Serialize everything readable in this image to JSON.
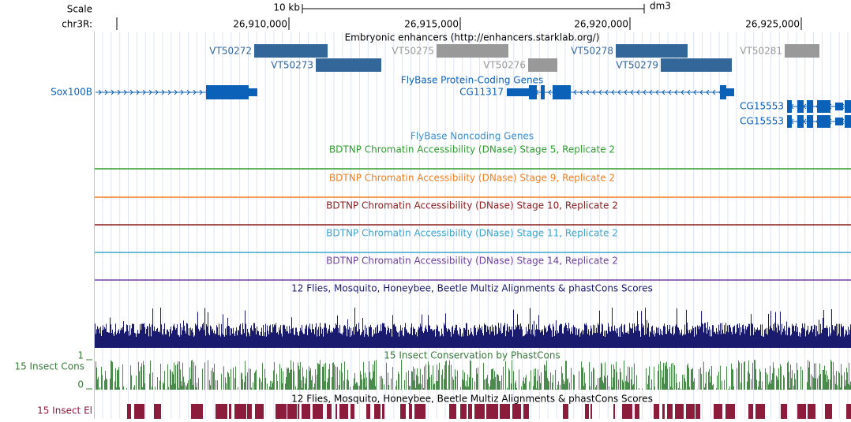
{
  "ruler": {
    "scale_label": "Scale",
    "scale_length": "10 kb",
    "assembly": "dm3",
    "chrom": "chr3R:",
    "positions": [
      "26,910,000",
      "26,915,000",
      "26,920,000",
      "26,925,000"
    ]
  },
  "tracks": {
    "enhancers": {
      "title": "Embryonic enhancers (http://enhancers.starklab.org/)",
      "features": [
        "VT50272",
        "VT50273",
        "VT50275",
        "VT50276",
        "VT50278",
        "VT50279",
        "VT50281"
      ]
    },
    "protein_coding": {
      "title": "FlyBase Protein-Coding Genes",
      "genes": [
        "Sox100B",
        "CG11317",
        "CG15553",
        "CG15553"
      ]
    },
    "noncoding": {
      "title": "FlyBase Noncoding Genes"
    },
    "dnase": [
      "BDTNP Chromatin Accessibility (DNase) Stage 5, Replicate 2",
      "BDTNP Chromatin Accessibility (DNase) Stage 9, Replicate 2",
      "BDTNP Chromatin Accessibility (DNase) Stage 10, Replicate 2",
      "BDTNP Chromatin Accessibility (DNase) Stage 11, Replicate 2",
      "BDTNP Chromatin Accessibility (DNase) Stage 14, Replicate 2"
    ],
    "multiz": {
      "title": "12 Flies, Mosquito, Honeybee, Beetle Multiz Alignments & phastCons Scores"
    },
    "phastcons": {
      "title": "15 Insect Conservation by PhastCons",
      "label": "15 Insect Cons",
      "max": "1",
      "min": "0"
    },
    "multiz2": {
      "title": "12 Flies, Mosquito, Honeybee, Beetle Multiz Alignments & phastCons Scores"
    },
    "elements": {
      "label": "15 Insect El"
    }
  }
}
